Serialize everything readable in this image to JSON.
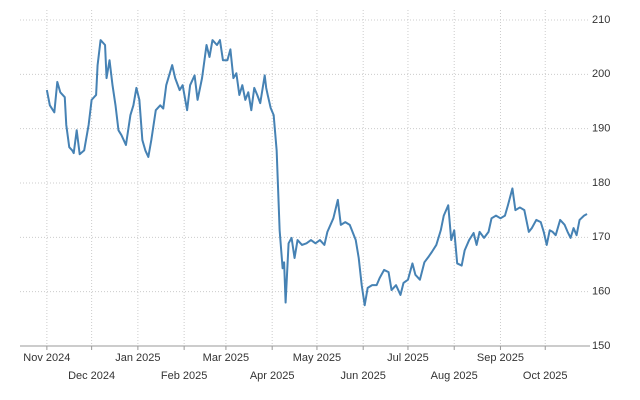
{
  "chart_data": {
    "type": "line",
    "x": [
      0,
      2,
      5,
      7,
      9,
      12,
      13,
      15,
      17,
      18,
      20,
      22,
      25,
      28,
      30,
      33,
      34,
      36,
      39,
      40,
      42,
      44,
      46,
      48,
      50,
      53,
      56,
      58,
      60,
      62,
      64,
      66,
      68,
      70,
      73,
      76,
      78,
      80,
      84,
      86,
      89,
      91,
      94,
      96,
      99,
      101,
      104,
      107,
      109,
      111,
      114,
      116,
      118,
      121,
      123,
      125,
      127,
      129,
      131,
      133,
      135,
      137,
      139,
      141,
      143,
      146,
      147,
      148,
      150,
      152,
      154,
      156,
      158,
      159,
      160,
      162,
      164,
      166,
      168,
      171,
      174,
      177,
      180,
      183,
      186,
      188,
      192,
      195,
      197,
      200,
      203,
      207,
      209,
      211,
      213,
      215,
      218,
      221,
      223,
      226,
      229,
      231,
      234,
      237,
      239,
      242,
      245,
      247,
      250,
      253,
      256,
      258,
      261,
      264,
      266,
      269,
      271,
      273,
      275,
      278,
      280,
      283,
      286,
      288,
      290,
      293,
      296,
      298,
      301,
      304,
      307,
      309,
      312,
      314,
      317,
      320,
      323,
      325,
      328,
      331,
      333,
      335,
      337,
      339,
      341,
      344,
      347,
      349,
      351,
      353,
      355,
      357,
      360,
      362
    ],
    "series": [
      {
        "color": "#4682b4",
        "values": [
          197.1,
          194.3,
          193,
          198.6,
          196.7,
          195.8,
          190.7,
          186.6,
          186,
          185.5,
          189.7,
          185.3,
          186,
          190.7,
          195.3,
          196.2,
          201.7,
          206.3,
          205.4,
          199.3,
          202.6,
          198,
          194.3,
          189.7,
          188.8,
          187,
          192.5,
          194.3,
          197.5,
          195.3,
          187.9,
          186,
          184.8,
          187.9,
          193.4,
          194.3,
          193.7,
          198,
          201.7,
          199.3,
          197.1,
          198,
          193.4,
          198,
          199.8,
          195.3,
          199.3,
          205.4,
          203.2,
          206.3,
          205.4,
          206.3,
          202.6,
          202.6,
          204.6,
          199.3,
          200.2,
          196.2,
          198,
          195.3,
          196.7,
          193.4,
          197.5,
          196.2,
          194.7,
          199.8,
          197.5,
          196.2,
          193.8,
          192.5,
          186,
          171.3,
          164.3,
          165.4,
          158,
          168.9,
          169.9,
          166.2,
          169.5,
          168.6,
          168.9,
          169.5,
          168.9,
          169.5,
          168.6,
          171,
          173.5,
          176.9,
          172.3,
          172.8,
          172.3,
          169.5,
          166.2,
          161.2,
          157.5,
          160.7,
          161.2,
          161.2,
          162.5,
          164,
          163.6,
          160.3,
          161.2,
          159.4,
          161.6,
          162.2,
          165.2,
          163.1,
          162.2,
          165.4,
          166.5,
          167.3,
          168.6,
          171.3,
          174,
          175.9,
          169.5,
          171.3,
          165.2,
          164.8,
          167.6,
          169.5,
          170.8,
          168.6,
          171,
          169.9,
          171,
          173.5,
          174,
          173.5,
          174,
          175.9,
          179,
          175,
          175.5,
          175,
          171,
          171.7,
          173.2,
          172.8,
          171,
          168.6,
          171.3,
          171,
          170.4,
          173.2,
          172.3,
          171,
          169.9,
          171.7,
          170.4,
          173.2,
          174,
          174.3
        ]
      }
    ],
    "xlim": [
      -18,
      364
    ],
    "xticks": [
      {
        "value": 0,
        "label": "Nov 2024"
      },
      {
        "value": 30,
        "label": "Dec 2024"
      },
      {
        "value": 61,
        "label": "Jan 2025"
      },
      {
        "value": 92,
        "label": "Feb 2025"
      },
      {
        "value": 120,
        "label": "Mar 2025"
      },
      {
        "value": 151,
        "label": "Apr 2025"
      },
      {
        "value": 181,
        "label": "May 2025"
      },
      {
        "value": 212,
        "label": "Jun 2025"
      },
      {
        "value": 242,
        "label": "Jul 2025"
      },
      {
        "value": 273,
        "label": "Aug 2025"
      },
      {
        "value": 304,
        "label": "Sep 2025"
      },
      {
        "value": 334,
        "label": "Oct 2025"
      }
    ],
    "ylim": [
      150,
      210
    ],
    "yticks": [
      150,
      160,
      170,
      180,
      190,
      200,
      210
    ],
    "grid": true
  }
}
